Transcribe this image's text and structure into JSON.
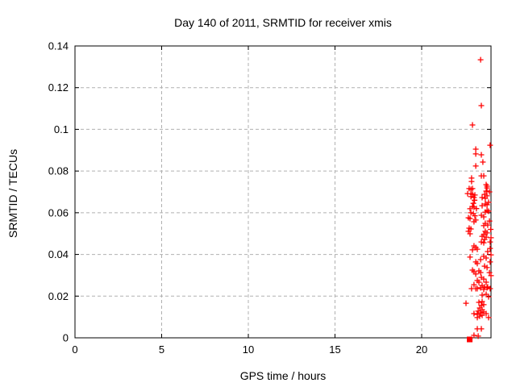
{
  "chart_data": {
    "type": "scatter",
    "title": "Day 140 of 2011, SRMTID for receiver xmis",
    "xlabel": "GPS time / hours",
    "ylabel": "SRMTID / TECUs",
    "xlim": [
      0,
      24
    ],
    "ylim": [
      0,
      0.14
    ],
    "xticks": [
      0,
      5,
      10,
      15,
      20
    ],
    "xtick_labels": [
      "0",
      "5",
      "10",
      "15",
      "20"
    ],
    "yticks": [
      0,
      0.02,
      0.04,
      0.06,
      0.08,
      0.1,
      0.12,
      0.14
    ],
    "ytick_labels": [
      "0",
      "0.02",
      "0.04",
      "0.06",
      "0.08",
      "0.1",
      "0.12",
      "0.14"
    ],
    "grid": true,
    "legend": "none",
    "colors": {
      "points": "#ff0000",
      "grid": "#b0b0b0",
      "axis": "#000000"
    },
    "series": [
      {
        "name": "srmtid-points",
        "marker": "plus",
        "points": [
          [
            23.4,
            0.1334
          ],
          [
            23.44,
            0.1114
          ],
          [
            22.93,
            0.1021
          ],
          [
            23.95,
            0.0924
          ],
          [
            23.12,
            0.0905
          ],
          [
            23.12,
            0.0882
          ],
          [
            23.44,
            0.0878
          ],
          [
            23.53,
            0.0843
          ],
          [
            23.12,
            0.0824
          ],
          [
            22.88,
            0.0766
          ],
          [
            22.88,
            0.075
          ],
          [
            23.44,
            0.0777
          ],
          [
            23.58,
            0.0777
          ],
          [
            23.72,
            0.0735
          ],
          [
            23.77,
            0.0727
          ],
          [
            23.77,
            0.0719
          ],
          [
            22.74,
            0.0716
          ],
          [
            22.84,
            0.0712
          ],
          [
            22.93,
            0.0716
          ],
          [
            23.72,
            0.0704
          ],
          [
            22.65,
            0.0692
          ],
          [
            22.84,
            0.0692
          ],
          [
            22.93,
            0.0688
          ],
          [
            23.07,
            0.0685
          ],
          [
            22.84,
            0.0677
          ],
          [
            23.02,
            0.0673
          ],
          [
            23.63,
            0.0688
          ],
          [
            23.77,
            0.0681
          ],
          [
            23.49,
            0.0673
          ],
          [
            23.67,
            0.0669
          ],
          [
            23.91,
            0.07
          ],
          [
            23.86,
            0.065
          ],
          [
            23.67,
            0.0642
          ],
          [
            23.77,
            0.0638
          ],
          [
            23.49,
            0.0634
          ],
          [
            22.93,
            0.063
          ],
          [
            23.02,
            0.0627
          ],
          [
            22.79,
            0.0619
          ],
          [
            23.77,
            0.0611
          ],
          [
            23.67,
            0.0603
          ],
          [
            23.86,
            0.0607
          ],
          [
            22.84,
            0.06
          ],
          [
            23.05,
            0.066
          ],
          [
            22.98,
            0.0645
          ],
          [
            23.16,
            0.062
          ],
          [
            23.07,
            0.0585
          ],
          [
            22.98,
            0.0596
          ],
          [
            23.44,
            0.0588
          ],
          [
            23.58,
            0.058
          ],
          [
            22.7,
            0.0576
          ],
          [
            22.79,
            0.0572
          ],
          [
            23.12,
            0.0565
          ],
          [
            23.02,
            0.0557
          ],
          [
            23.67,
            0.0549
          ],
          [
            23.81,
            0.0541
          ],
          [
            23.58,
            0.0538
          ],
          [
            23.91,
            0.056
          ],
          [
            22.74,
            0.0526
          ],
          [
            22.84,
            0.0522
          ],
          [
            22.7,
            0.0511
          ],
          [
            22.79,
            0.0499
          ],
          [
            23.67,
            0.0511
          ],
          [
            23.77,
            0.0503
          ],
          [
            23.98,
            0.052
          ],
          [
            23.58,
            0.0495
          ],
          [
            23.49,
            0.0487
          ],
          [
            23.72,
            0.0483
          ],
          [
            23.63,
            0.0472
          ],
          [
            24.0,
            0.048
          ],
          [
            23.44,
            0.046
          ],
          [
            23.58,
            0.0456
          ],
          [
            23.95,
            0.046
          ],
          [
            23.02,
            0.0441
          ],
          [
            23.12,
            0.0433
          ],
          [
            23.21,
            0.0425
          ],
          [
            22.93,
            0.0422
          ],
          [
            23.95,
            0.0429
          ],
          [
            23.81,
            0.0414
          ],
          [
            24.0,
            0.0398
          ],
          [
            22.79,
            0.0387
          ],
          [
            23.58,
            0.0391
          ],
          [
            23.72,
            0.0383
          ],
          [
            23.4,
            0.0375
          ],
          [
            23.12,
            0.0364
          ],
          [
            23.21,
            0.0356
          ],
          [
            23.95,
            0.0364
          ],
          [
            23.63,
            0.0344
          ],
          [
            23.77,
            0.0337
          ],
          [
            22.93,
            0.0325
          ],
          [
            23.02,
            0.0317
          ],
          [
            23.3,
            0.0321
          ],
          [
            23.4,
            0.0313
          ],
          [
            23.12,
            0.0306
          ],
          [
            23.91,
            0.0313
          ],
          [
            24.0,
            0.0298
          ],
          [
            23.44,
            0.029
          ],
          [
            23.58,
            0.0282
          ],
          [
            23.21,
            0.0275
          ],
          [
            23.3,
            0.0267
          ],
          [
            23.72,
            0.0267
          ],
          [
            23.02,
            0.0255
          ],
          [
            23.49,
            0.0251
          ],
          [
            23.63,
            0.0244
          ],
          [
            23.81,
            0.0244
          ],
          [
            23.12,
            0.0236
          ],
          [
            22.88,
            0.0236
          ],
          [
            23.21,
            0.0236
          ],
          [
            23.4,
            0.024
          ],
          [
            23.58,
            0.0232
          ],
          [
            23.77,
            0.024
          ],
          [
            23.95,
            0.0236
          ],
          [
            23.49,
            0.0205
          ],
          [
            23.72,
            0.0209
          ],
          [
            23.86,
            0.0197
          ],
          [
            22.56,
            0.0166
          ],
          [
            23.3,
            0.017
          ],
          [
            23.49,
            0.0174
          ],
          [
            23.44,
            0.0155
          ],
          [
            23.58,
            0.0159
          ],
          [
            23.35,
            0.0143
          ],
          [
            23.49,
            0.0135
          ],
          [
            23.26,
            0.0128
          ],
          [
            23.4,
            0.012
          ],
          [
            23.58,
            0.0124
          ],
          [
            23.21,
            0.0112
          ],
          [
            23.49,
            0.0108
          ],
          [
            23.02,
            0.0116
          ],
          [
            23.72,
            0.0116
          ],
          [
            23.86,
            0.0097
          ],
          [
            23.35,
            0.0104
          ],
          [
            23.21,
            0.0097
          ],
          [
            23.21,
            0.0043
          ],
          [
            23.44,
            0.0043
          ],
          [
            23.02,
            0.0012
          ],
          [
            23.26,
            0.0008
          ]
        ]
      },
      {
        "name": "srmtid-zero-marker",
        "marker": "square",
        "points": [
          [
            22.77,
            0
          ]
        ]
      }
    ]
  }
}
